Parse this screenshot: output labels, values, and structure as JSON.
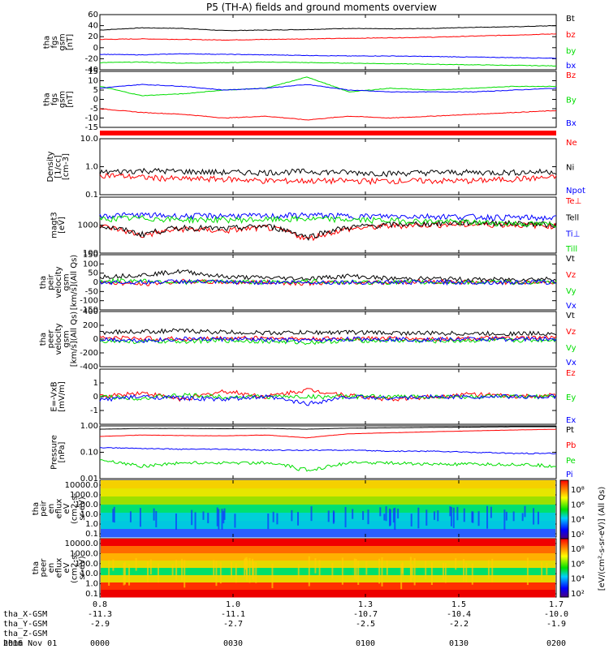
{
  "title": "P5 (TH-A) fields and ground moments overview",
  "colors": {
    "black": "#000000",
    "red": "#ff0000",
    "green": "#00dd00",
    "blue": "#0000ff",
    "bar": "#ff0000"
  },
  "chart_data": [
    {
      "type": "line",
      "panel": "fgs_gsm",
      "ylabel": [
        "tha",
        "fgs",
        "gsm",
        "[nT]"
      ],
      "ylim": [
        -40,
        60
      ],
      "yticks": [
        "60",
        "40",
        "20",
        "0",
        "-20",
        "-40"
      ],
      "scale": "linear",
      "series": [
        {
          "name": "Bt",
          "color": "black",
          "values": [
            32,
            36,
            35,
            31,
            32,
            33,
            35,
            34,
            35,
            37,
            38,
            40
          ]
        },
        {
          "name": "bz",
          "color": "red",
          "values": [
            15,
            16,
            15,
            14,
            15,
            16,
            17,
            18,
            19,
            21,
            23,
            25
          ]
        },
        {
          "name": "by",
          "color": "green",
          "values": [
            -27,
            -26,
            -28,
            -27,
            -26,
            -27,
            -28,
            -29,
            -30,
            -31,
            -32,
            -33
          ]
        },
        {
          "name": "bx",
          "color": "blue",
          "values": [
            -12,
            -13,
            -11,
            -12,
            -13,
            -14,
            -15,
            -15,
            -16,
            -17,
            -18,
            -19
          ]
        }
      ]
    },
    {
      "type": "line",
      "panel": "fgs_gsm_zoom",
      "ylabel": [
        "tha",
        "fgs",
        "gsm",
        "[nT]"
      ],
      "ylim": [
        -15,
        15
      ],
      "yticks": [
        "15",
        "10",
        "5",
        "0",
        "-5",
        "-10",
        "-15"
      ],
      "scale": "linear",
      "series": [
        {
          "name": "Bz",
          "color": "red",
          "values": [
            -5,
            -7,
            -8,
            -10,
            -9,
            -11,
            -9,
            -10,
            -9,
            -8,
            -7,
            -6
          ]
        },
        {
          "name": "By",
          "color": "green",
          "values": [
            7,
            2,
            3,
            5,
            6,
            12,
            4,
            6,
            5,
            6,
            7,
            7
          ]
        },
        {
          "name": "Bx",
          "color": "blue",
          "values": [
            6,
            8,
            7,
            5,
            6,
            8,
            5,
            4,
            4,
            4,
            5,
            6
          ]
        }
      ]
    },
    {
      "type": "line",
      "panel": "density",
      "ylabel": [
        "Density",
        "[1/cc]",
        "[cm-3]"
      ],
      "ylim": [
        0.1,
        10
      ],
      "yticks": [
        "10.0",
        "1.0",
        "0.1"
      ],
      "scale": "log",
      "series": [
        {
          "name": "Ne",
          "color": "red",
          "values": [
            0.5,
            0.4,
            0.35,
            0.35,
            0.3,
            0.3,
            0.3,
            0.3,
            0.3,
            0.3,
            0.35,
            0.4
          ]
        },
        {
          "name": "Ni",
          "color": "black",
          "values": [
            0.6,
            0.7,
            0.65,
            0.6,
            0.6,
            0.65,
            0.6,
            0.55,
            0.6,
            0.6,
            0.6,
            0.65
          ]
        },
        {
          "name": "Npot",
          "color": "blue",
          "values": []
        }
      ]
    },
    {
      "type": "line",
      "panel": "temperature",
      "ylabel": [
        "magt3",
        "[eV]"
      ],
      "ylim": [
        100,
        10000
      ],
      "yticks": [
        "1000",
        "100"
      ],
      "scale": "log",
      "series": [
        {
          "name": "Te⊥",
          "color": "red",
          "values": [
            900,
            400,
            700,
            600,
            800,
            300,
            700,
            900,
            1000,
            1000,
            1000,
            900
          ]
        },
        {
          "name": "Tell",
          "color": "black",
          "values": [
            900,
            450,
            800,
            700,
            900,
            350,
            800,
            1000,
            1100,
            1200,
            1100,
            1000
          ]
        },
        {
          "name": "Ti⊥",
          "color": "blue",
          "values": [
            2100,
            2200,
            2000,
            2100,
            2000,
            2200,
            2000,
            2000,
            2000,
            1900,
            1800,
            1700
          ]
        },
        {
          "name": "Till",
          "color": "green",
          "values": [
            1600,
            1700,
            1500,
            1500,
            1500,
            1600,
            1500,
            1400,
            1300,
            1200,
            1100,
            1000
          ]
        }
      ]
    },
    {
      "type": "line",
      "panel": "velocity_1",
      "ylabel": [
        "tha",
        "peir",
        "velocity",
        "gsm",
        "[km/s](All Qs)"
      ],
      "ylim": [
        -150,
        150
      ],
      "yticks": [
        "150",
        "100",
        "50",
        "0",
        "-50",
        "-100",
        "-150"
      ],
      "scale": "linear",
      "series": [
        {
          "name": "Vt",
          "color": "black",
          "values": [
            30,
            40,
            60,
            30,
            25,
            20,
            35,
            20,
            20,
            15,
            15,
            20
          ]
        },
        {
          "name": "Vz",
          "color": "red",
          "values": [
            0,
            -10,
            5,
            0,
            0,
            -5,
            0,
            0,
            5,
            0,
            0,
            0
          ]
        },
        {
          "name": "Vy",
          "color": "green",
          "values": [
            5,
            10,
            0,
            5,
            0,
            5,
            0,
            0,
            0,
            0,
            0,
            0
          ]
        },
        {
          "name": "Vx",
          "color": "blue",
          "values": [
            0,
            0,
            5,
            0,
            0,
            0,
            0,
            0,
            0,
            0,
            0,
            0
          ]
        }
      ]
    },
    {
      "type": "line",
      "panel": "velocity_2",
      "ylabel": [
        "tha",
        "peer",
        "velocity",
        "gsm",
        "[km/s](All Qs)"
      ],
      "ylim": [
        -400,
        400
      ],
      "yticks": [
        "400",
        "200",
        "0",
        "-200",
        "-400"
      ],
      "scale": "linear",
      "series": [
        {
          "name": "Vt",
          "color": "black",
          "values": [
            100,
            110,
            120,
            100,
            90,
            95,
            100,
            90,
            85,
            80,
            80,
            85
          ]
        },
        {
          "name": "Vz",
          "color": "red",
          "values": [
            20,
            10,
            0,
            10,
            20,
            0,
            10,
            10,
            0,
            10,
            10,
            20
          ]
        },
        {
          "name": "Vy",
          "color": "green",
          "values": [
            -20,
            -40,
            -30,
            -20,
            -30,
            -50,
            -20,
            -20,
            -30,
            -20,
            -20,
            -10
          ]
        },
        {
          "name": "Vx",
          "color": "blue",
          "values": [
            0,
            -20,
            0,
            0,
            -10,
            -20,
            0,
            0,
            -10,
            0,
            0,
            0
          ]
        }
      ]
    },
    {
      "type": "line",
      "panel": "efield",
      "ylabel": [
        "E=-VxB",
        "[mV/m]"
      ],
      "ylim": [
        -2,
        2
      ],
      "yticks": [
        "1",
        "0",
        "-1"
      ],
      "scale": "linear",
      "series": [
        {
          "name": "Ez",
          "color": "red",
          "values": [
            0,
            0.3,
            -0.2,
            0.4,
            0,
            0.5,
            0.1,
            -0.2,
            0,
            0.2,
            0,
            0.1
          ]
        },
        {
          "name": "Ey",
          "color": "green",
          "values": [
            0,
            -0.1,
            0.1,
            0,
            0,
            0,
            0,
            0,
            0,
            0,
            0,
            0
          ]
        },
        {
          "name": "Ex",
          "color": "blue",
          "values": [
            -0.2,
            0,
            -0.1,
            -0.2,
            0,
            -0.5,
            0,
            -0.1,
            0,
            0,
            0,
            0
          ]
        }
      ]
    },
    {
      "type": "line",
      "panel": "pressure",
      "ylabel": [
        "Pressure",
        "[nPa]"
      ],
      "ylim": [
        0.01,
        1.0
      ],
      "yticks": [
        "1.00",
        "0.10",
        "0.01"
      ],
      "scale": "log",
      "series": [
        {
          "name": "Pt",
          "color": "black",
          "values": [
            0.75,
            0.8,
            0.8,
            0.78,
            0.8,
            0.75,
            0.82,
            0.85,
            0.88,
            0.9,
            0.93,
            0.95
          ]
        },
        {
          "name": "Pb",
          "color": "red",
          "values": [
            0.4,
            0.45,
            0.43,
            0.42,
            0.45,
            0.35,
            0.5,
            0.55,
            0.6,
            0.65,
            0.7,
            0.75
          ]
        },
        {
          "name": "Pe",
          "color": "green",
          "values": [
            0.05,
            0.03,
            0.04,
            0.04,
            0.04,
            0.02,
            0.04,
            0.04,
            0.035,
            0.035,
            0.035,
            0.03
          ]
        },
        {
          "name": "Pi",
          "color": "blue",
          "values": [
            0.15,
            0.14,
            0.13,
            0.13,
            0.12,
            0.12,
            0.12,
            0.11,
            0.11,
            0.1,
            0.09,
            0.09
          ]
        }
      ]
    },
    {
      "type": "heatmap",
      "panel": "peir_efluxspec",
      "ylabel": [
        "tha",
        "peir",
        "en",
        "eflux",
        "eV",
        "(cm2-s-",
        "sr-eV)"
      ],
      "ylim": [
        0.1,
        10000
      ],
      "yticks": [
        "10000.0",
        "1000.0",
        "100.0",
        "10.0",
        "1.0",
        "0.1"
      ],
      "scale": "log",
      "colorscale": "rainbow"
    },
    {
      "type": "heatmap",
      "panel": "peer_efluxspec",
      "ylabel": [
        "tha",
        "peer",
        "en",
        "eflux",
        "eV",
        "(cm2-s-",
        "sr-eV)"
      ],
      "ylim": [
        0.1,
        10000
      ],
      "yticks": [
        "10000.0",
        "1000.0",
        "100.0",
        "10.0",
        "1.0",
        "0.1"
      ],
      "scale": "log",
      "colorscale": "rainbow"
    }
  ],
  "colorbar": {
    "ticks": [
      "10⁸",
      "10⁶",
      "10⁴",
      "10²",
      "10⁸",
      "10⁶",
      "10⁴",
      "10²"
    ],
    "label": "[eV/(cm²-s-sr-eV)] (All Qs)"
  },
  "xaxis": {
    "ticks": [
      "0.8",
      "1.0",
      "1.3",
      "1.5",
      "1.7"
    ],
    "rows": [
      {
        "label": "tha_X-GSM",
        "values": [
          "-11.3",
          "-11.1",
          "-10.7",
          "-10.4",
          "-10.0"
        ]
      },
      {
        "label": "tha_Y-GSM",
        "values": [
          "-2.9",
          "-2.7",
          "-2.5",
          "-2.2",
          "-1.9"
        ]
      },
      {
        "label": "tha_Z-GSM",
        "values": [
          "",
          "",
          "",
          "",
          ""
        ]
      },
      {
        "label": "hhmm",
        "values": [
          "0000",
          "0030",
          "0100",
          "0130",
          "0200"
        ]
      }
    ],
    "date": "2016 Nov 01"
  }
}
